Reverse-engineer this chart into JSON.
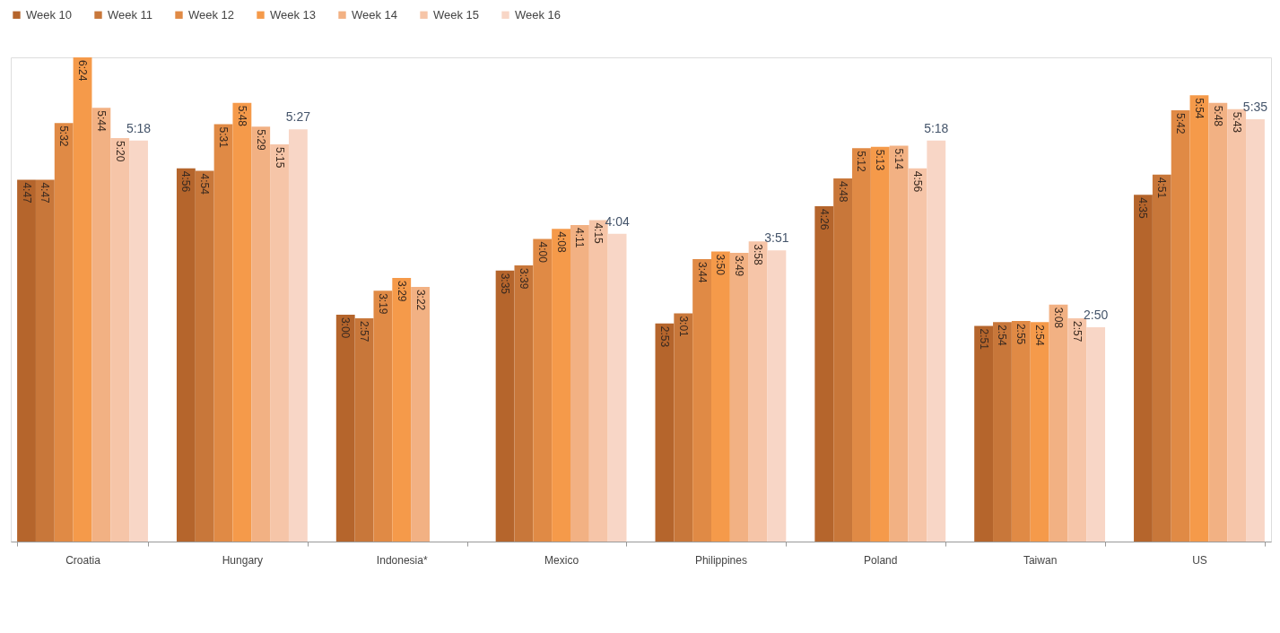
{
  "chart_data": {
    "type": "bar",
    "categories": [
      "Croatia",
      "Hungary",
      "Indonesia*",
      "Mexico",
      "Philippines",
      "Poland",
      "Taiwan",
      "US"
    ],
    "series": [
      {
        "name": "Week 10",
        "color": "#b5652c",
        "values": [
          4.783,
          4.933,
          3.0,
          3.583,
          2.883,
          4.433,
          2.85,
          4.583
        ],
        "value_labels": [
          "4:47",
          "4:56",
          "3:00",
          "3:35",
          "2:53",
          "4:26",
          "2:51",
          "4:35"
        ]
      },
      {
        "name": "Week 11",
        "color": "#c8773a",
        "values": [
          4.783,
          4.9,
          2.95,
          3.65,
          3.017,
          4.8,
          2.9,
          4.85
        ],
        "value_labels": [
          "4:47",
          "4:54",
          "2:57",
          "3:39",
          "3:01",
          "4:48",
          "2:54",
          "4:51"
        ]
      },
      {
        "name": "Week 12",
        "color": "#e08a45",
        "values": [
          5.533,
          5.517,
          3.317,
          4.0,
          3.733,
          5.2,
          2.917,
          5.7
        ],
        "value_labels": [
          "5:32",
          "5:31",
          "3:19",
          "4:00",
          "3:44",
          "5:12",
          "2:55",
          "5:42"
        ]
      },
      {
        "name": "Week 13",
        "color": "#f59a4a",
        "values": [
          6.4,
          5.8,
          3.483,
          4.133,
          3.833,
          5.217,
          2.9,
          5.9
        ],
        "value_labels": [
          "6:24",
          "5:48",
          "3:29",
          "4:08",
          "3:50",
          "5:13",
          "2:54",
          "5:54"
        ]
      },
      {
        "name": "Week 14",
        "color": "#f2b183",
        "values": [
          5.733,
          5.483,
          3.367,
          4.183,
          3.817,
          5.233,
          3.133,
          5.8
        ],
        "value_labels": [
          "5:44",
          "5:29",
          "3:22",
          "4:11",
          "3:49",
          "5:14",
          "3:08",
          "5:48"
        ]
      },
      {
        "name": "Week 15",
        "color": "#f6c5a8",
        "values": [
          5.333,
          5.25,
          null,
          4.25,
          3.967,
          4.933,
          2.95,
          5.717
        ],
        "value_labels": [
          "5:20",
          "5:15",
          null,
          "4:15",
          "3:58",
          "4:56",
          "2:57",
          "5:43"
        ]
      },
      {
        "name": "Week 16",
        "color": "#f8d6c6",
        "values": [
          5.3,
          5.45,
          null,
          4.067,
          3.85,
          5.3,
          2.833,
          5.583
        ],
        "value_labels": [
          "5:18",
          "5:27",
          null,
          "4:04",
          "3:51",
          "5:18",
          "2:50",
          "5:35"
        ]
      }
    ],
    "legend": "top",
    "grid": false
  }
}
